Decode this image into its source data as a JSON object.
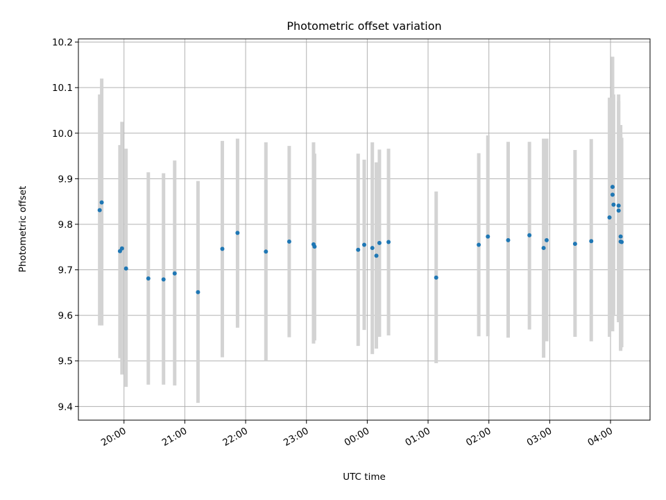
{
  "chart_data": {
    "type": "scatter",
    "title": "Photometric offset variation",
    "xlabel": "UTC time",
    "ylabel": "Photometric offset",
    "x_ticks": [
      "20:00",
      "21:00",
      "22:00",
      "23:00",
      "00:00",
      "01:00",
      "02:00",
      "03:00",
      "04:00"
    ],
    "x_range": [
      "19:15",
      "04:39"
    ],
    "y_ticks": [
      "9.4",
      "9.5",
      "9.6",
      "9.7",
      "9.8",
      "9.9",
      "10.0",
      "10.1",
      "10.2"
    ],
    "ylim": [
      9.37,
      10.207
    ],
    "grid": true,
    "colors": {
      "point": "#1f77b4",
      "errorbar": "#d3d3d3",
      "grid": "#b0b0b0"
    },
    "points": [
      {
        "t": "19:36",
        "y": 9.831,
        "lo": 9.578,
        "hi": 10.085
      },
      {
        "t": "19:38",
        "y": 9.848,
        "lo": 9.578,
        "hi": 10.12
      },
      {
        "t": "19:56",
        "y": 9.741,
        "lo": 9.506,
        "hi": 9.974
      },
      {
        "t": "19:58",
        "y": 9.747,
        "lo": 9.47,
        "hi": 10.025
      },
      {
        "t": "20:02",
        "y": 9.703,
        "lo": 9.443,
        "hi": 9.966
      },
      {
        "t": "20:24",
        "y": 9.681,
        "lo": 9.448,
        "hi": 9.914
      },
      {
        "t": "20:39",
        "y": 9.679,
        "lo": 9.448,
        "hi": 9.912
      },
      {
        "t": "20:50",
        "y": 9.692,
        "lo": 9.446,
        "hi": 9.94
      },
      {
        "t": "21:13",
        "y": 9.651,
        "lo": 9.408,
        "hi": 9.895
      },
      {
        "t": "21:37",
        "y": 9.746,
        "lo": 9.508,
        "hi": 9.983
      },
      {
        "t": "21:52",
        "y": 9.781,
        "lo": 9.573,
        "hi": 9.988
      },
      {
        "t": "22:20",
        "y": 9.74,
        "lo": 9.5,
        "hi": 9.98
      },
      {
        "t": "22:43",
        "y": 9.762,
        "lo": 9.552,
        "hi": 9.972
      },
      {
        "t": "23:07",
        "y": 9.756,
        "lo": 9.538,
        "hi": 9.98
      },
      {
        "t": "23:08",
        "y": 9.751,
        "lo": 9.545,
        "hi": 9.955
      },
      {
        "t": "23:51",
        "y": 9.744,
        "lo": 9.533,
        "hi": 9.955
      },
      {
        "t": "23:57",
        "y": 9.755,
        "lo": 9.568,
        "hi": 9.942
      },
      {
        "t": "00:05",
        "y": 9.748,
        "lo": 9.515,
        "hi": 9.98
      },
      {
        "t": "00:09",
        "y": 9.731,
        "lo": 9.527,
        "hi": 9.936
      },
      {
        "t": "00:12",
        "y": 9.759,
        "lo": 9.553,
        "hi": 9.964
      },
      {
        "t": "00:21",
        "y": 9.761,
        "lo": 9.556,
        "hi": 9.966
      },
      {
        "t": "01:08",
        "y": 9.683,
        "lo": 9.495,
        "hi": 9.872
      },
      {
        "t": "01:50",
        "y": 9.755,
        "lo": 9.554,
        "hi": 9.956
      },
      {
        "t": "01:59",
        "y": 9.773,
        "lo": 9.554,
        "hi": 9.995
      },
      {
        "t": "02:19",
        "y": 9.765,
        "lo": 9.551,
        "hi": 9.981
      },
      {
        "t": "02:40",
        "y": 9.776,
        "lo": 9.569,
        "hi": 9.981
      },
      {
        "t": "02:54",
        "y": 9.748,
        "lo": 9.507,
        "hi": 9.988
      },
      {
        "t": "02:57",
        "y": 9.765,
        "lo": 9.543,
        "hi": 9.988
      },
      {
        "t": "03:25",
        "y": 9.757,
        "lo": 9.553,
        "hi": 9.963
      },
      {
        "t": "03:41",
        "y": 9.763,
        "lo": 9.543,
        "hi": 9.987
      },
      {
        "t": "03:59",
        "y": 9.815,
        "lo": 9.553,
        "hi": 10.078
      },
      {
        "t": "04:02",
        "y": 9.882,
        "lo": 9.598,
        "hi": 10.165
      },
      {
        "t": "04:02",
        "y": 9.865,
        "lo": 9.565,
        "hi": 10.168
      },
      {
        "t": "04:03",
        "y": 9.843,
        "lo": 9.6,
        "hi": 10.085
      },
      {
        "t": "04:08",
        "y": 9.841,
        "lo": 9.585,
        "hi": 10.085
      },
      {
        "t": "04:08",
        "y": 9.83,
        "lo": 9.59,
        "hi": 10.07
      },
      {
        "t": "04:10",
        "y": 9.773,
        "lo": 9.527,
        "hi": 10.018
      },
      {
        "t": "04:10",
        "y": 9.762,
        "lo": 9.522,
        "hi": 10.002
      },
      {
        "t": "04:11",
        "y": 9.761,
        "lo": 9.53,
        "hi": 9.99
      }
    ]
  }
}
